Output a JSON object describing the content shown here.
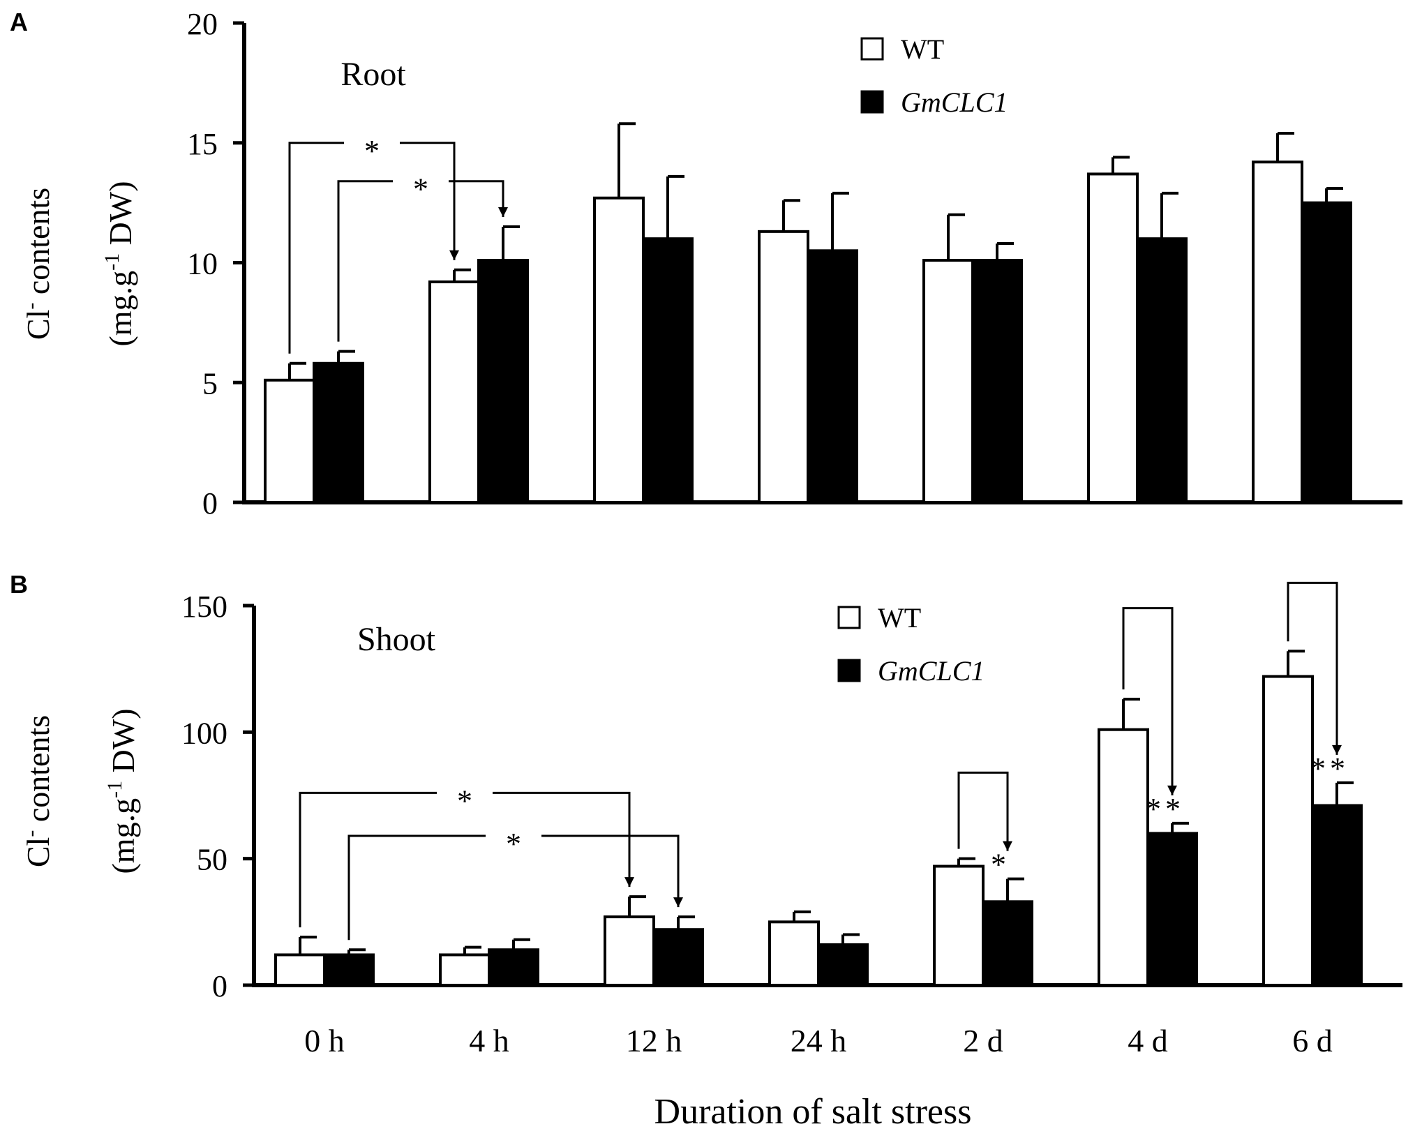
{
  "colors": {
    "wt_fill": "#ffffff",
    "gmclc1_fill": "#000000",
    "axis": "#000000",
    "background": "#ffffff"
  },
  "figure": {
    "xlabel": "Duration of salt stress"
  },
  "chart_data": [
    {
      "panel_label": "A",
      "type": "bar",
      "title": "Root",
      "xlabel": "Duration of salt stress",
      "ylabel_line1": "Cl",
      "ylabel_line1_sup": "-",
      "ylabel_line1_rest": " contents",
      "ylabel_line2_pre": "(mg.g",
      "ylabel_line2_sup": "-1",
      "ylabel_line2_post": " DW)",
      "ylim": [
        0,
        20
      ],
      "yticks": [
        "0",
        "5",
        "10",
        "15",
        "20"
      ],
      "ytick_values": [
        0,
        5,
        10,
        15,
        20
      ],
      "categories": [
        "0 h",
        "4 h",
        "12 h",
        "24 h",
        "2 d",
        "4 d",
        "6 d"
      ],
      "series": [
        {
          "name": "WT",
          "color": "#ffffff",
          "italic": false,
          "values": [
            5.1,
            9.2,
            12.7,
            11.3,
            10.1,
            13.7,
            14.2
          ],
          "errors": [
            0.7,
            0.5,
            3.1,
            1.3,
            1.9,
            0.7,
            1.2
          ]
        },
        {
          "name": "GmCLC1",
          "color": "#000000",
          "italic": true,
          "values": [
            5.8,
            10.1,
            11.0,
            10.5,
            10.1,
            11.0,
            12.5
          ],
          "errors": [
            0.5,
            1.4,
            2.6,
            2.4,
            0.7,
            1.9,
            0.6
          ]
        }
      ],
      "annotations": [
        {
          "type": "bracket",
          "from_category": 0,
          "from_series": 0,
          "to_category": 1,
          "to_series": 0,
          "level": 15.0,
          "label": "*"
        },
        {
          "type": "bracket",
          "from_category": 0,
          "from_series": 1,
          "to_category": 1,
          "to_series": 1,
          "level": 13.4,
          "label": "*"
        }
      ]
    },
    {
      "panel_label": "B",
      "type": "bar",
      "title": "Shoot",
      "xlabel": "Duration of salt stress",
      "ylabel_line1": "Cl",
      "ylabel_line1_sup": "-",
      "ylabel_line1_rest": " contents",
      "ylabel_line2_pre": "(mg.g",
      "ylabel_line2_sup": "-1",
      "ylabel_line2_post": " DW)",
      "ylim": [
        0,
        150
      ],
      "yticks": [
        "0",
        "50",
        "100",
        "150"
      ],
      "ytick_values": [
        0,
        50,
        100,
        150
      ],
      "categories": [
        "0 h",
        "4 h",
        "12 h",
        "24 h",
        "2 d",
        "4 d",
        "6 d"
      ],
      "series": [
        {
          "name": "WT",
          "color": "#ffffff",
          "italic": false,
          "values": [
            12,
            12,
            27,
            25,
            47,
            101,
            122
          ],
          "errors": [
            7,
            3,
            8,
            4,
            3,
            12,
            10
          ]
        },
        {
          "name": "GmCLC1",
          "color": "#000000",
          "italic": true,
          "values": [
            12,
            14,
            22,
            16,
            33,
            60,
            71
          ],
          "errors": [
            2,
            4,
            5,
            4,
            9,
            4,
            9
          ]
        }
      ],
      "annotations": [
        {
          "type": "bracket",
          "from_category": 0,
          "from_series": 0,
          "to_category": 2,
          "to_series": 0,
          "level": 76,
          "label": "*"
        },
        {
          "type": "bracket",
          "from_category": 0,
          "from_series": 1,
          "to_category": 2,
          "to_series": 1,
          "level": 59,
          "label": "*"
        },
        {
          "type": "pair",
          "category": 4,
          "level": 84,
          "label": "*"
        },
        {
          "type": "pair",
          "category": 5,
          "level": 149,
          "label": "**"
        },
        {
          "type": "pair",
          "category": 6,
          "level": 159,
          "label": "**"
        }
      ]
    }
  ]
}
